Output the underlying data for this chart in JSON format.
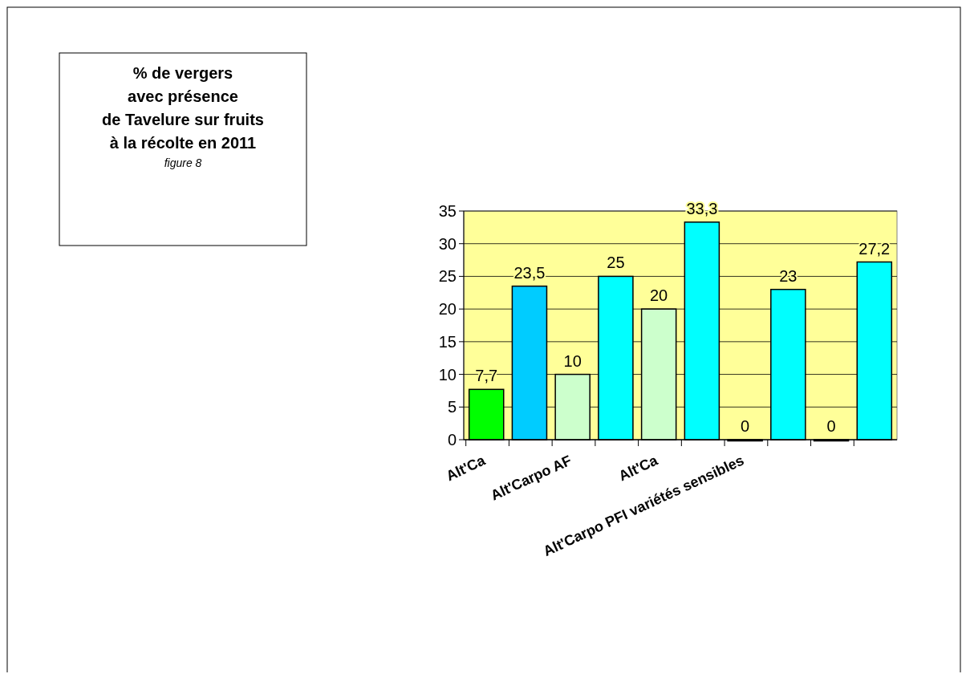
{
  "chart_data": {
    "type": "bar",
    "title": "% de vergers\navec présence\nde Tavelure sur fruits\nà la récolte en 2011",
    "subtitle": "figure 8",
    "categories": [
      "Alt'Ca",
      null,
      "Alt'Carpo AF",
      null,
      "Alt'Ca",
      null,
      "Alt'Carpo PFI variétés sensibles",
      null,
      null,
      null
    ],
    "values": [
      7.7,
      23.5,
      10,
      25,
      20,
      33.3,
      0,
      23,
      0,
      27.2
    ],
    "colors": [
      "#00ff00",
      "#00ccff",
      "#ccffcc",
      "#00ffff",
      "#ccffcc",
      "#00ffff",
      "#ccffcc",
      "#00ffff",
      "#ccffcc",
      "#00ffff"
    ],
    "value_labels": [
      "7,7",
      "23,5",
      "10",
      "25",
      "20",
      "33,3",
      "0",
      "23",
      "0",
      "27,2"
    ],
    "ylim": [
      0,
      35
    ],
    "yticks": [
      0,
      5,
      10,
      15,
      20,
      25,
      30,
      35
    ],
    "grid": "y"
  }
}
